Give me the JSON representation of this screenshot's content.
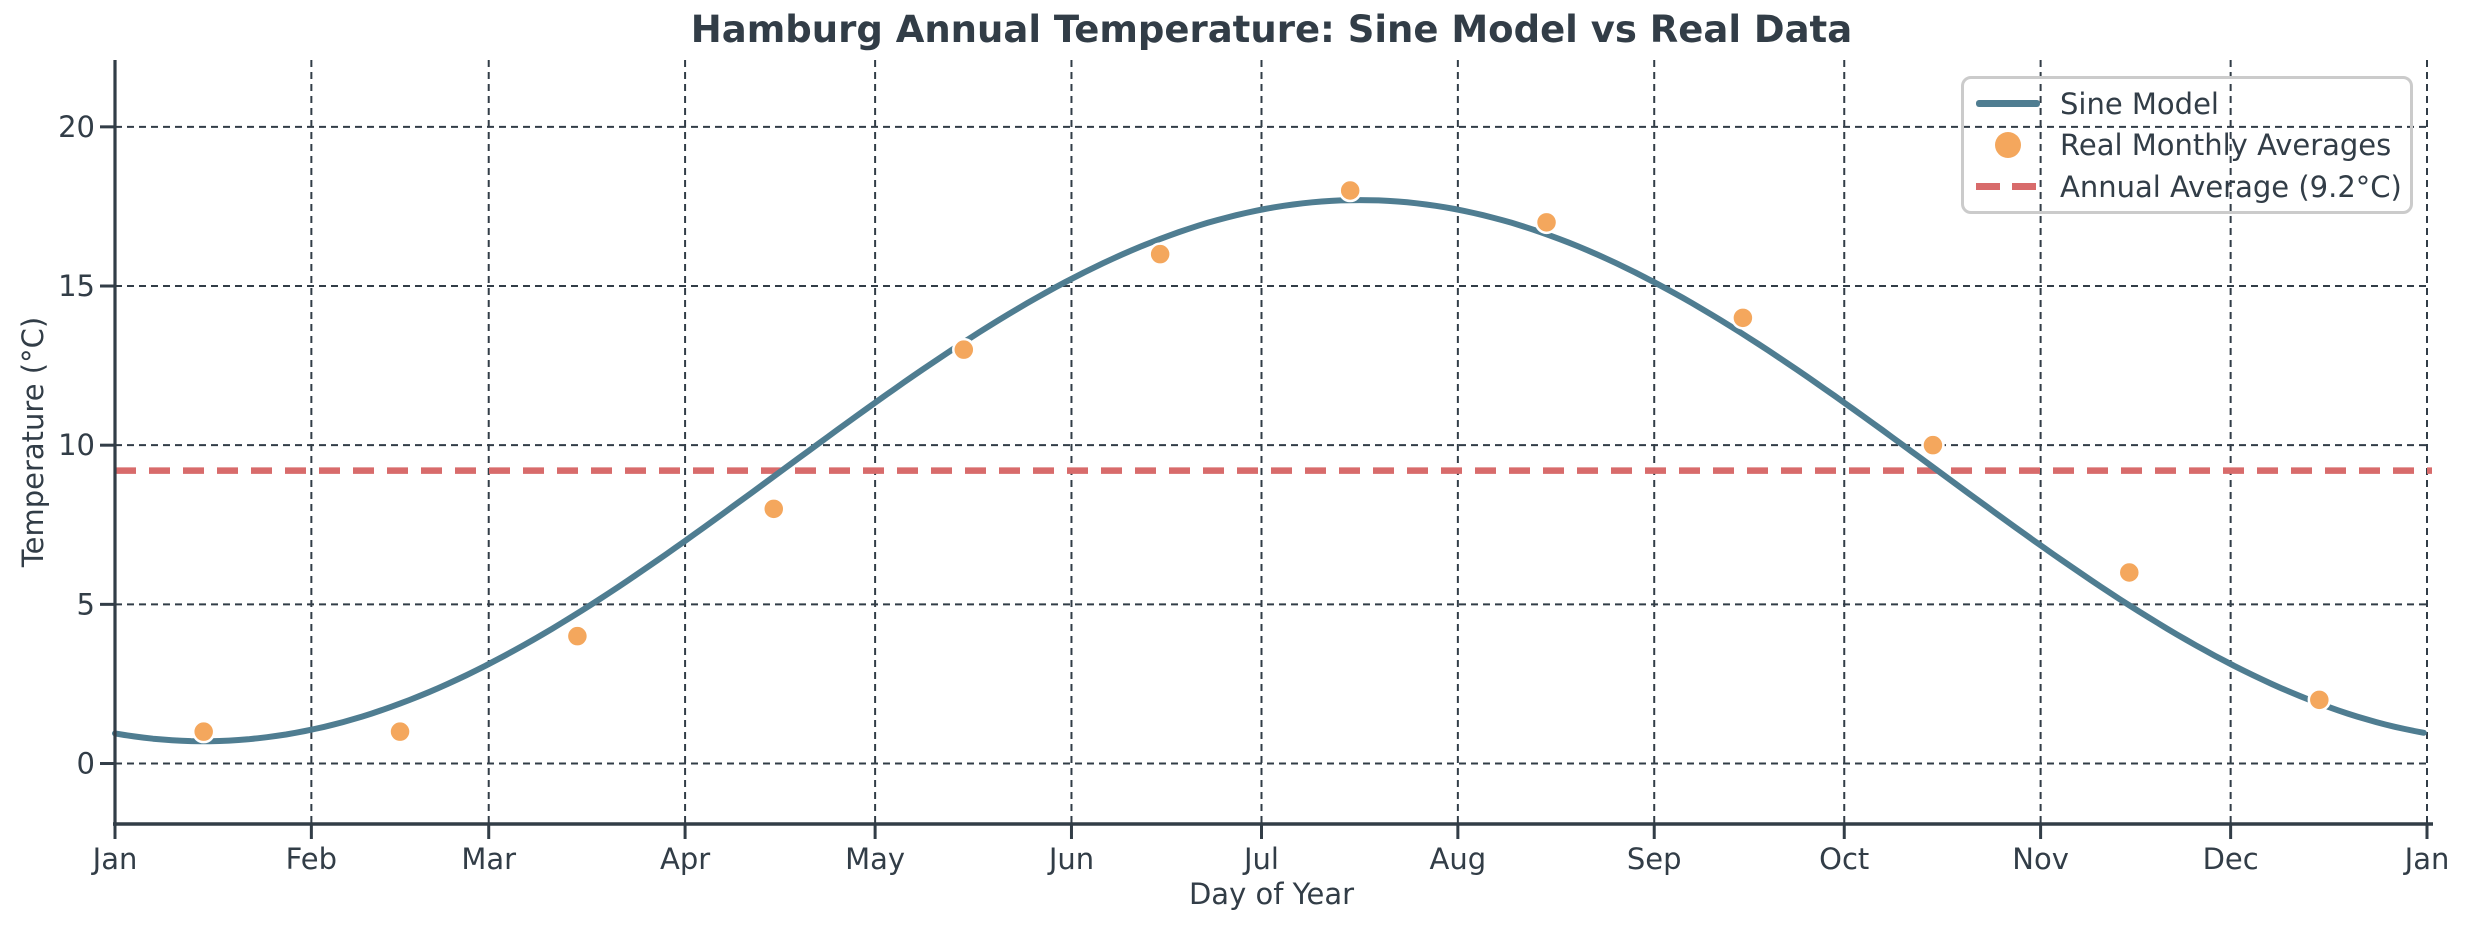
{
  "chart_data": {
    "type": "line",
    "title": "Hamburg Annual Temperature: Sine Model vs Real Data",
    "xlabel": "Day of Year",
    "ylabel": "Temperature (°C)",
    "ylim": [
      -1.9,
      22.1
    ],
    "y_ticks": [
      0,
      5,
      10,
      15,
      20
    ],
    "x_ticks": {
      "labels": [
        "Jan",
        "Feb",
        "Mar",
        "Apr",
        "May",
        "Jun",
        "Jul",
        "Aug",
        "Sep",
        "Oct",
        "Nov",
        "Dec",
        "Jan"
      ],
      "days": [
        1,
        32,
        60,
        91,
        121,
        152,
        182,
        213,
        244,
        274,
        305,
        335,
        366
      ]
    },
    "grid": true,
    "legend_position": "upper right",
    "annual_average_c": 9.2,
    "series": [
      {
        "name": "Sine Model",
        "type": "line",
        "color": "#4F7D91",
        "model": {
          "mean": 9.2,
          "amplitude": 8.5,
          "coldest_day": 15,
          "period_days": 365
        }
      },
      {
        "name": "Real Monthly Averages",
        "type": "scatter",
        "color": "#F4A75D",
        "days": [
          15,
          46,
          74,
          105,
          135,
          166,
          196,
          227,
          258,
          288,
          319,
          349
        ],
        "values": [
          1,
          1,
          4,
          8,
          13,
          16,
          18,
          17,
          14,
          10,
          6,
          2
        ]
      },
      {
        "name": "Annual Average (9.2°C)",
        "type": "hline",
        "color": "#D86B6B",
        "value": 9.2,
        "line_style": "dashed"
      }
    ]
  },
  "styles": {
    "text_color": "#323D47",
    "grid_color": "#323D47",
    "spine_color": "#323D47",
    "legend_border_color": "#CBCBCB",
    "background": "#FFFFFF"
  }
}
